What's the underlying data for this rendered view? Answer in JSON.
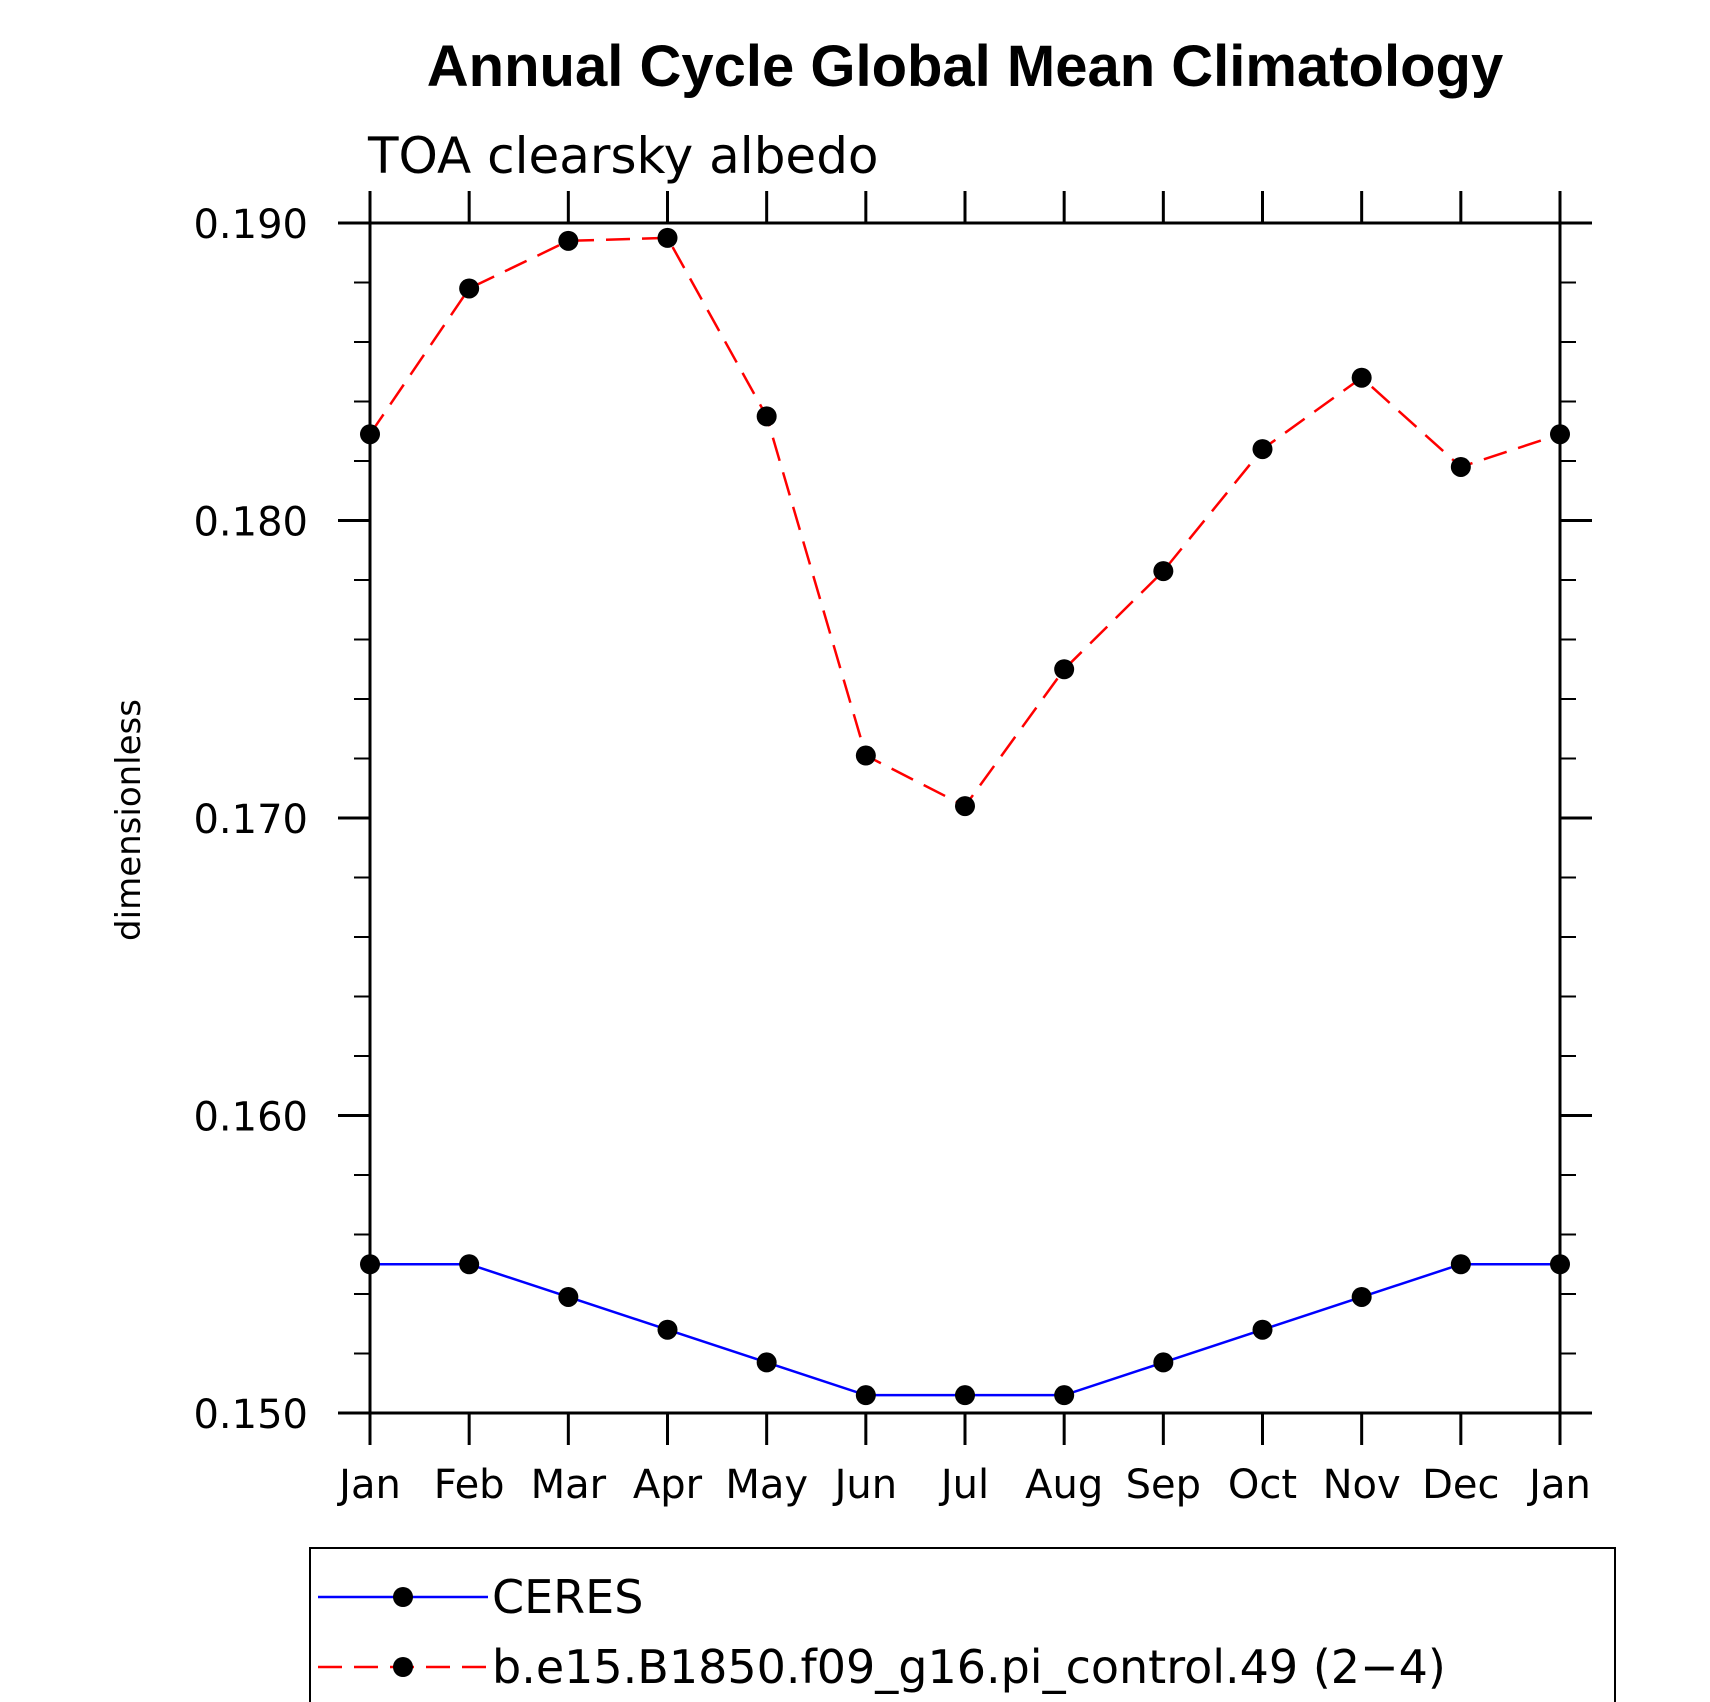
{
  "chart_data": {
    "type": "line",
    "title": "Annual Cycle Global Mean Climatology",
    "subtitle": "TOA clearsky albedo",
    "xlabel": "",
    "ylabel": "dimensionless",
    "categories": [
      "Jan",
      "Feb",
      "Mar",
      "Apr",
      "May",
      "Jun",
      "Jul",
      "Aug",
      "Sep",
      "Oct",
      "Nov",
      "Dec",
      "Jan"
    ],
    "ylim": [
      0.15,
      0.19
    ],
    "yticks": [
      "0.150",
      "0.160",
      "0.170",
      "0.180",
      "0.190"
    ],
    "grid": false,
    "legend_position": "bottom",
    "series": [
      {
        "name": "CERES",
        "color": "#0000ff",
        "line_style": "solid",
        "marker": "filled-circle",
        "values": [
          0.155,
          0.155,
          0.1539,
          0.1528,
          0.1517,
          0.1506,
          0.1506,
          0.1506,
          0.1517,
          0.1528,
          0.1539,
          0.155,
          0.155
        ]
      },
      {
        "name": "b.e15.B1850.f09_g16.pi_control.49 (2−4)",
        "color": "#ff0000",
        "line_style": "dashed",
        "marker": "filled-circle",
        "values": [
          0.1829,
          0.1878,
          0.1894,
          0.1895,
          0.1835,
          0.1721,
          0.1704,
          0.175,
          0.1783,
          0.1824,
          0.1848,
          0.1818,
          0.1829
        ]
      }
    ]
  }
}
